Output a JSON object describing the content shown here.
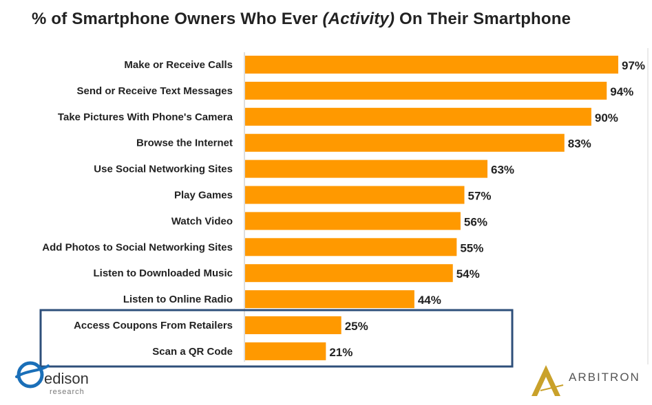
{
  "title": {
    "prefix": "% of Smartphone Owners Who Ever ",
    "emphasis": "(Activity)",
    "suffix": " On Their Smartphone"
  },
  "chart_data": {
    "type": "bar",
    "orientation": "horizontal",
    "categories": [
      "Make or Receive Calls",
      "Send or Receive Text Messages",
      "Take Pictures With Phone's Camera",
      "Browse the Internet",
      "Use Social Networking Sites",
      "Play Games",
      "Watch Video",
      "Add Photos to Social Networking Sites",
      "Listen to Downloaded Music",
      "Listen to Online Radio",
      "Access Coupons From Retailers",
      "Scan a QR Code"
    ],
    "values": [
      97,
      94,
      90,
      83,
      63,
      57,
      56,
      55,
      54,
      44,
      25,
      21
    ],
    "value_labels": [
      "97%",
      "94%",
      "90%",
      "83%",
      "63%",
      "57%",
      "56%",
      "55%",
      "54%",
      "44%",
      "25%",
      "21%"
    ],
    "xlim": [
      0,
      100
    ],
    "unit": "%",
    "grid": false,
    "legend": "none",
    "highlighted_categories": [
      "Access Coupons From Retailers",
      "Scan a QR Code"
    ]
  },
  "colors": {
    "bar": "#FF9900",
    "highlight_box": "#2E4F7A",
    "edison_logo": "#1A6FB8",
    "arbitron_logo": "#C9A12A",
    "arbitron_text": "#555555"
  },
  "logos": {
    "edison": {
      "name": "edison",
      "sub": "research"
    },
    "arbitron": {
      "name": "ARBITRON"
    }
  }
}
